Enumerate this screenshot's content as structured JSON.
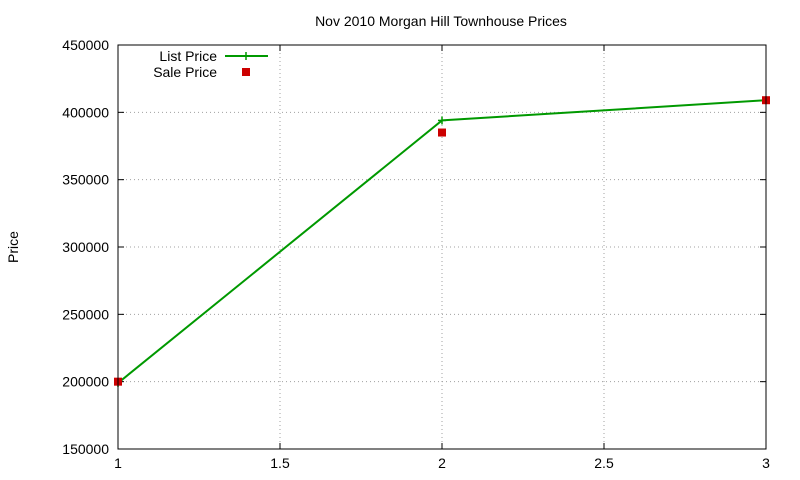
{
  "chart_data": {
    "type": "line",
    "title": "Nov 2010 Morgan Hill Townhouse Prices",
    "xlabel": "",
    "ylabel": "Price",
    "xlim": [
      1,
      3
    ],
    "ylim": [
      150000,
      450000
    ],
    "x_ticks": [
      1,
      1.5,
      2,
      2.5,
      3
    ],
    "x_tick_labels": [
      "1",
      "1.5",
      "2",
      "2.5",
      "3"
    ],
    "y_ticks": [
      150000,
      200000,
      250000,
      300000,
      350000,
      400000,
      450000
    ],
    "y_tick_labels": [
      "150000",
      "200000",
      "250000",
      "300000",
      "350000",
      "400000",
      "450000"
    ],
    "grid": true,
    "legend_position": "top-left",
    "series": [
      {
        "name": "List Price",
        "style": "line-with-plus-markers",
        "color": "#009900",
        "x": [
          1,
          2,
          3
        ],
        "values": [
          199000,
          394000,
          409000
        ]
      },
      {
        "name": "Sale Price",
        "style": "square-markers",
        "color": "#cc0000",
        "x": [
          1,
          2,
          3
        ],
        "values": [
          200000,
          385000,
          409000
        ]
      }
    ]
  }
}
